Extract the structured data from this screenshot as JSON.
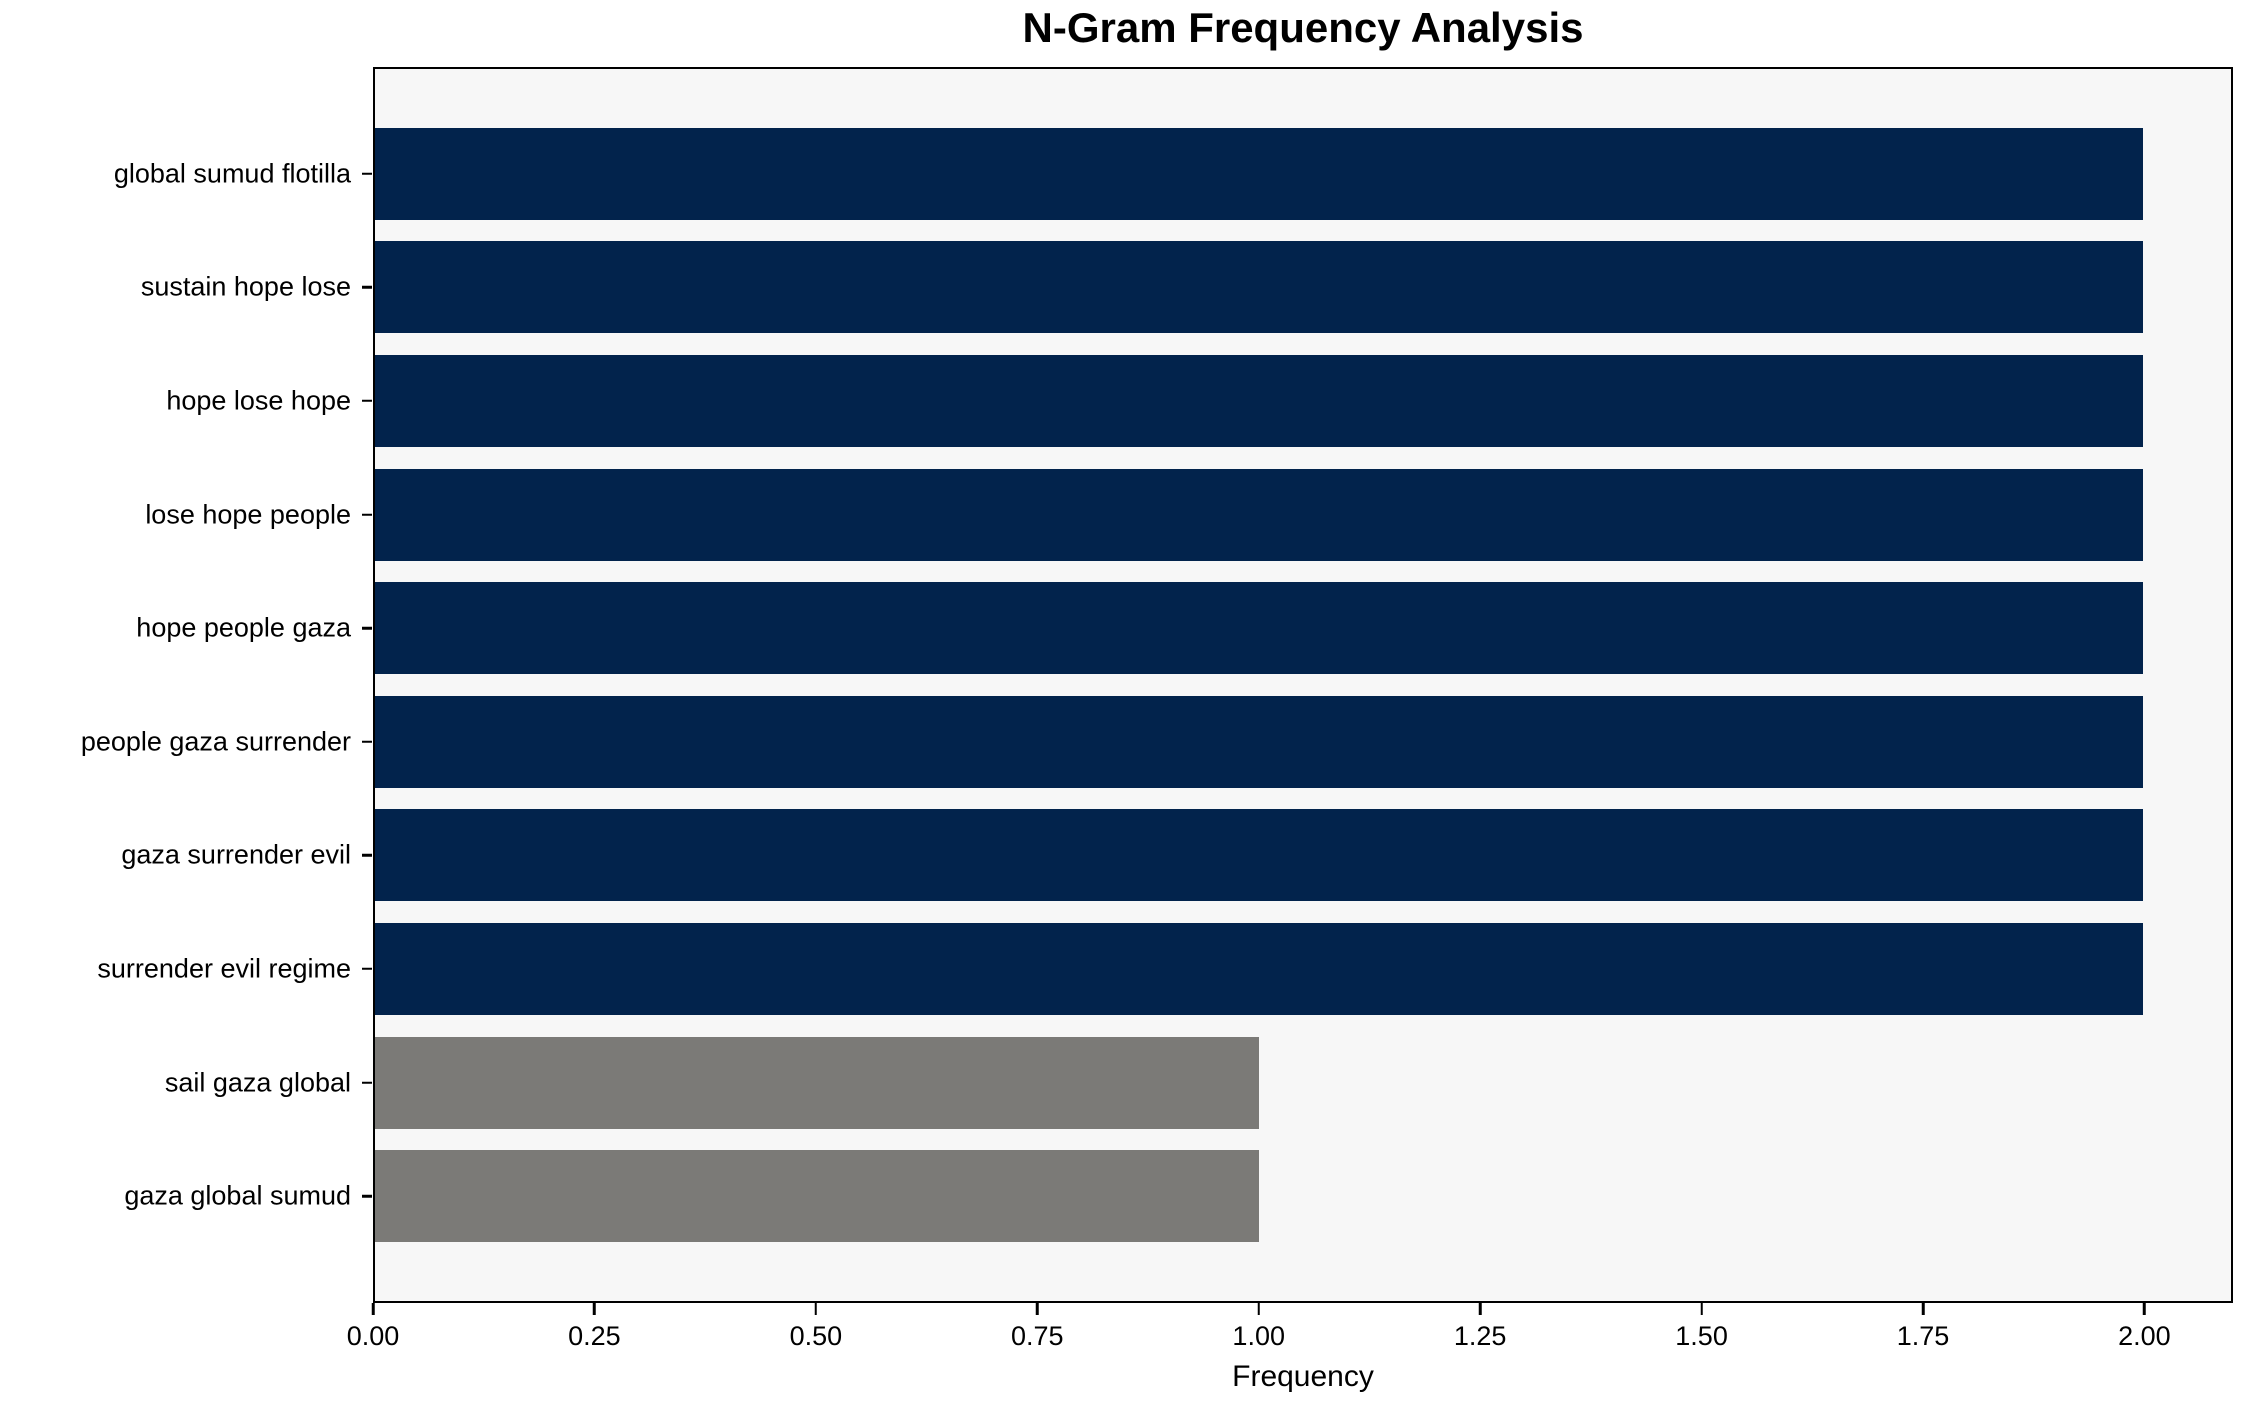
{
  "figure": {
    "background": "#ffffff",
    "plot_background": "#f7f7f7",
    "spine_color": "#000000",
    "text_color": "#000000"
  },
  "chart_data": {
    "type": "bar",
    "orientation": "horizontal",
    "title": "N-Gram Frequency Analysis",
    "xlabel": "Frequency",
    "ylabel": "",
    "categories": [
      "global sumud flotilla",
      "sustain hope lose",
      "hope lose hope",
      "lose hope people",
      "hope people gaza",
      "people gaza surrender",
      "gaza surrender evil",
      "surrender evil regime",
      "sail gaza global",
      "gaza global sumud"
    ],
    "values": [
      2,
      2,
      2,
      2,
      2,
      2,
      2,
      2,
      1,
      1
    ],
    "bar_colors": [
      "#02234c",
      "#02234c",
      "#02234c",
      "#02234c",
      "#02234c",
      "#02234c",
      "#02234c",
      "#02234c",
      "#7b7a77",
      "#7b7a77"
    ],
    "color_legend": {
      "navy": "#02234c",
      "gray": "#7b7a77"
    },
    "xlim": [
      0,
      2.1
    ],
    "xticks": [
      "0.00",
      "0.25",
      "0.50",
      "0.75",
      "1.00",
      "1.25",
      "1.50",
      "1.75",
      "2.00"
    ],
    "grid": false,
    "legend_position": "none"
  }
}
